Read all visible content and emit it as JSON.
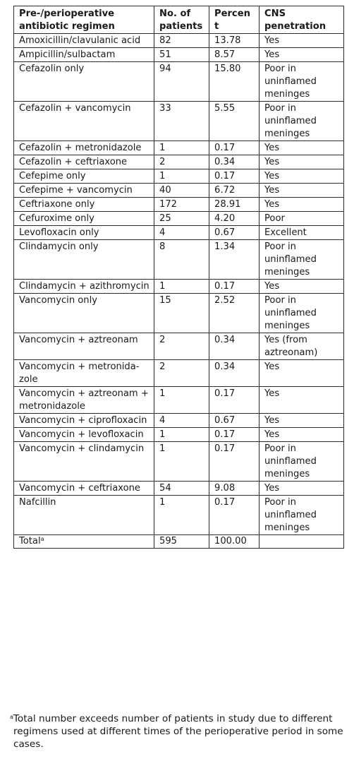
{
  "table": {
    "headers": [
      "Pre-/perioperative antibiotic regimen",
      "No. of patients",
      "Percent",
      "CNS penetration"
    ],
    "rows": [
      [
        "Amoxicillin/clavulanic acid",
        "82",
        "13.78",
        "Yes"
      ],
      [
        "Ampicillin/sulbactam",
        "51",
        "8.57",
        "Yes"
      ],
      [
        "Cefazolin only",
        "94",
        "15.80",
        "Poor in uninflamed meninges"
      ],
      [
        "Cefazolin + vancomycin",
        "33",
        "5.55",
        "Poor in uninflamed meninges"
      ],
      [
        "Cefazolin + metronidazole",
        "1",
        "0.17",
        "Yes"
      ],
      [
        "Cefazolin + ceftriaxone",
        "2",
        "0.34",
        "Yes"
      ],
      [
        "Cefepime only",
        "1",
        "0.17",
        "Yes"
      ],
      [
        "Cefepime + vancomycin",
        "40",
        "6.72",
        "Yes"
      ],
      [
        "Ceftriaxone only",
        "172",
        "28.91",
        "Yes"
      ],
      [
        "Cefuroxime only",
        "25",
        "4.20",
        "Poor"
      ],
      [
        "Levofloxacin only",
        "4",
        "0.67",
        "Excellent"
      ],
      [
        "Clindamycin only",
        "8",
        "1.34",
        "Poor in uninflamed meninges"
      ],
      [
        "Clindamycin + azithromy­cin",
        "1",
        "0.17",
        "Yes"
      ],
      [
        "Vancomycin only",
        "15",
        "2.52",
        "Poor in uninflamed meninges"
      ],
      [
        "Vancomycin + aztreonam",
        "2",
        "0.34",
        "Yes (from aztreonam)"
      ],
      [
        "Vancomycin + metronida­zole",
        "2",
        "0.34",
        "Yes"
      ],
      [
        "Vancomycin + aztreonam + metronidazole",
        "1",
        "0.17",
        "Yes"
      ],
      [
        "Vancomycin + ciprofloxacin",
        "4",
        "0.67",
        "Yes"
      ],
      [
        "Vancomycin + levofloxacin",
        "1",
        "0.17",
        "Yes"
      ],
      [
        "Vancomycin + clindamycin",
        "1",
        "0.17",
        "Poor in uninflamed meninges"
      ],
      [
        "Vancomycin + ceftriaxone",
        "54",
        "9.08",
        "Yes"
      ],
      [
        "Nafcillin",
        "1",
        "0.17",
        "Poor in uninflamed meninges"
      ]
    ],
    "total": {
      "label": "Total",
      "mark": "a",
      "patients": "595",
      "percent": "100.00",
      "cns": ""
    }
  },
  "footnote": {
    "mark": "a",
    "text": "Total number exceeds number of patients in study due to different regimens used at different times of the perioperative period in some cases."
  }
}
